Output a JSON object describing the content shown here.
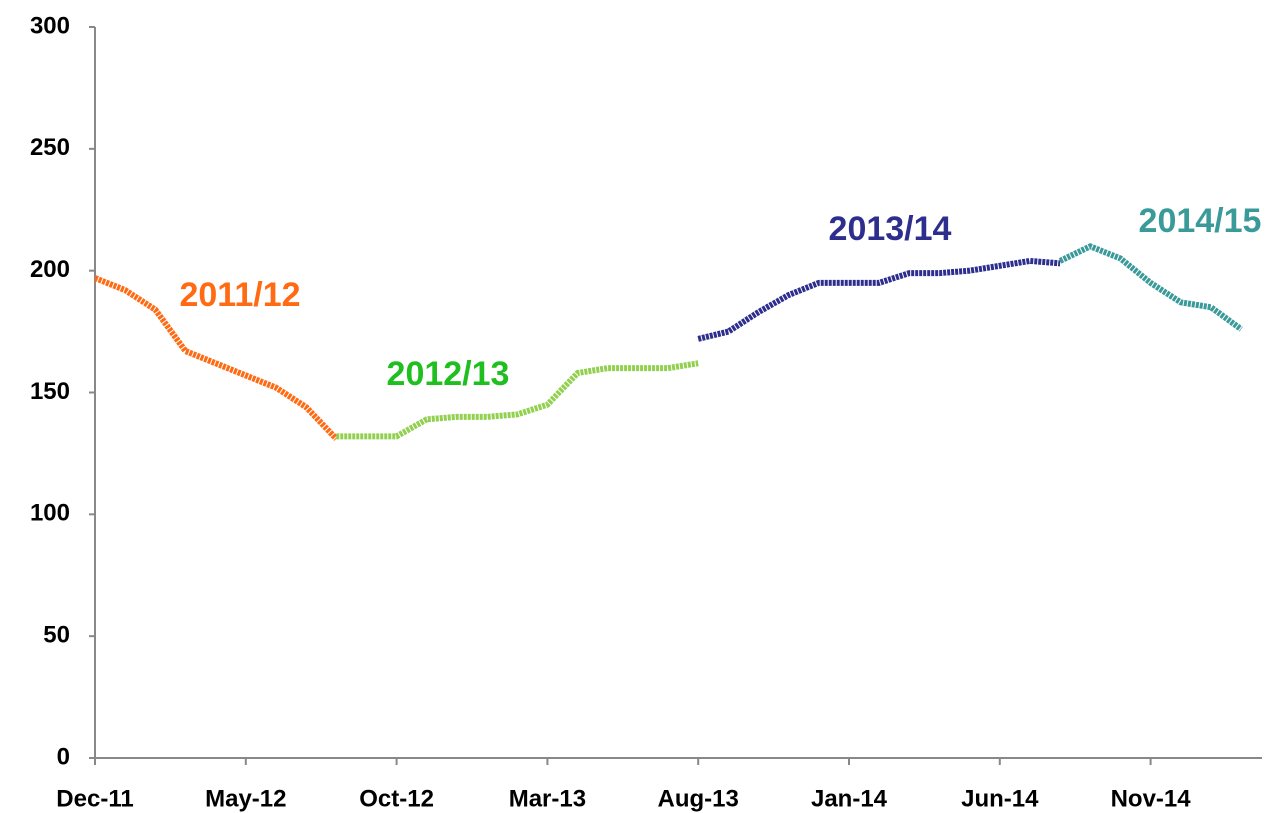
{
  "chart_data": {
    "type": "line",
    "categories": [
      "Dec-11",
      null,
      null,
      null,
      null,
      "May-12",
      null,
      null,
      null,
      null,
      "Oct-12",
      null,
      null,
      null,
      null,
      "Mar-13",
      null,
      null,
      null,
      null,
      "Aug-13",
      null,
      null,
      null,
      null,
      "Jan-14",
      null,
      null,
      null,
      null,
      "Jun-14",
      null,
      null,
      null,
      null,
      "Nov-14",
      null,
      null,
      null
    ],
    "series": [
      {
        "name": "2011/12",
        "color": "#ff6a13",
        "label_color": "#ff6a13",
        "values": [
          197,
          192,
          184,
          167,
          162,
          157,
          152,
          144,
          131,
          null,
          null,
          null,
          null,
          null,
          null,
          null,
          null,
          null,
          null,
          null,
          null,
          null,
          null,
          null,
          null,
          null,
          null,
          null,
          null,
          null,
          null,
          null,
          null,
          null,
          null,
          null,
          null,
          null,
          null
        ]
      },
      {
        "name": "2012/13",
        "color": "#92d050",
        "label_color": "#1fbf1f",
        "values": [
          null,
          null,
          null,
          null,
          null,
          null,
          null,
          null,
          132,
          132,
          132,
          139,
          140,
          140,
          141,
          145,
          158,
          160,
          160,
          160,
          162,
          null,
          null,
          null,
          null,
          null,
          null,
          null,
          null,
          null,
          null,
          null,
          null,
          null,
          null,
          null,
          null,
          null,
          null
        ]
      },
      {
        "name": "2013/14",
        "color": "#2e2e8f",
        "label_color": "#2e2e8f",
        "values": [
          null,
          null,
          null,
          null,
          null,
          null,
          null,
          null,
          null,
          null,
          null,
          null,
          null,
          null,
          null,
          null,
          null,
          null,
          null,
          null,
          172,
          175,
          183,
          190,
          195,
          195,
          195,
          199,
          199,
          200,
          202,
          204,
          203,
          null,
          null,
          null,
          null,
          null,
          null
        ]
      },
      {
        "name": "2014/15",
        "color": "#3a9a9a",
        "label_color": "#3a9a9a",
        "values": [
          null,
          null,
          null,
          null,
          null,
          null,
          null,
          null,
          null,
          null,
          null,
          null,
          null,
          null,
          null,
          null,
          null,
          null,
          null,
          null,
          null,
          null,
          null,
          null,
          null,
          null,
          null,
          null,
          null,
          null,
          null,
          null,
          204,
          210,
          205,
          195,
          187,
          185,
          176
        ]
      }
    ],
    "ylim": [
      0,
      300
    ],
    "yticks": [
      0,
      50,
      100,
      150,
      200,
      250,
      300
    ],
    "grid": false
  }
}
